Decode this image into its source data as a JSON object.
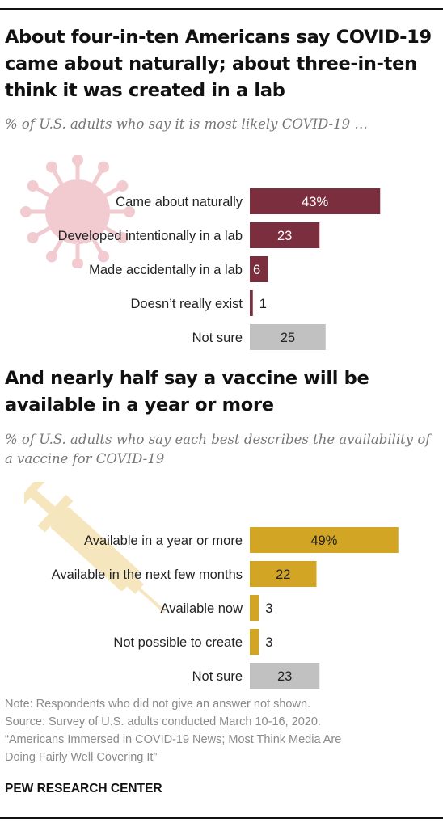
{
  "title_1": "About four-in-ten Americans say COVID-19 came about naturally; about three-in-ten think it was created in a lab",
  "subtitle_1": "% of U.S. adults who say it is most likely COVID-19 …",
  "title_2": "And nearly half say a vaccine will be available in a year or more",
  "subtitle_2": "% of U.S. adults who say each best describes the availability of a vaccine for COVID-19",
  "notes": [
    "Note: Respondents who did not give an answer not shown.",
    "Source: Survey of U.S. adults conducted March 10-16, 2020.",
    "“Americans Immersed in COVID-19 News; Most Think Media Are",
    "Doing Fairly Well Covering It”"
  ],
  "brand": "PEW RESEARCH CENTER",
  "decorations": {
    "chart_1_icon": "virus-icon",
    "chart_2_icon": "syringe-icon"
  },
  "colors": {
    "chart_1_bar": "#7b2e3e",
    "chart_2_bar": "#d2a524",
    "not_sure_bar": "#c1c1c1",
    "virus_icon": "#f1cbd0",
    "syringe_icon": "#f6e6bd"
  },
  "chart_data": [
    {
      "type": "bar",
      "orientation": "horizontal",
      "categories": [
        "Came about naturally",
        "Developed intentionally in a lab",
        "Made accidentally in a lab",
        "Doesn’t really exist",
        "Not sure"
      ],
      "values": [
        43,
        23,
        6,
        1,
        25
      ],
      "value_labels": [
        "43%",
        "23",
        "6",
        "1",
        "25"
      ]
    },
    {
      "type": "bar",
      "orientation": "horizontal",
      "categories": [
        "Available in a year or more",
        "Available in the next few months",
        "Available now",
        "Not possible to create",
        "Not sure"
      ],
      "values": [
        49,
        22,
        3,
        3,
        23
      ],
      "value_labels": [
        "49%",
        "22",
        "3",
        "3",
        "23"
      ]
    }
  ]
}
